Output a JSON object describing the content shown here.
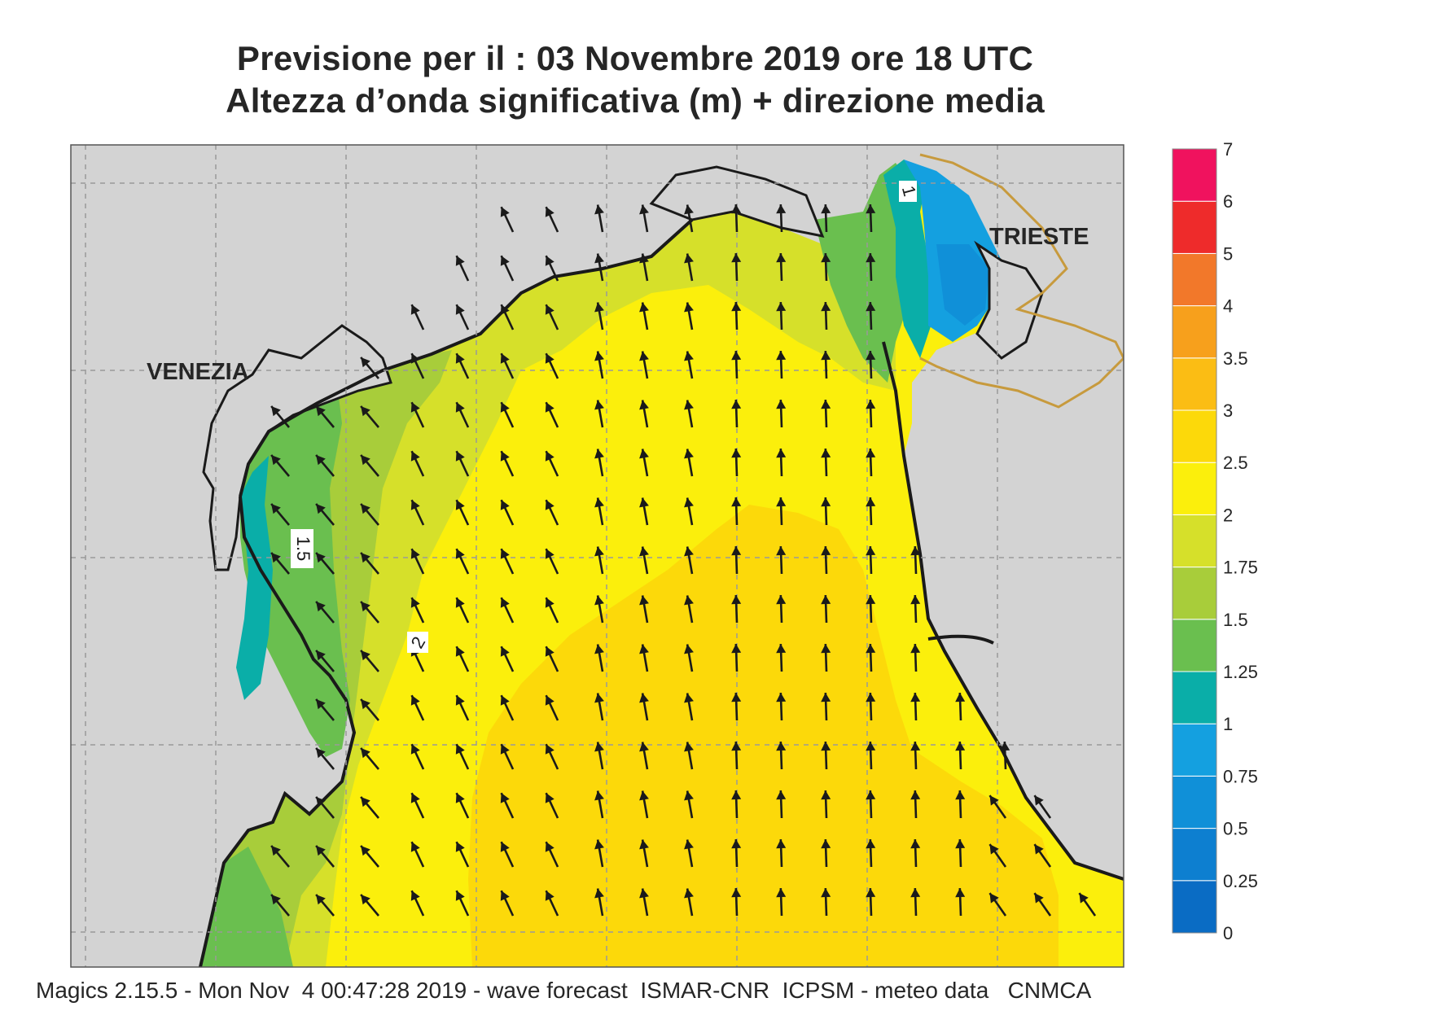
{
  "title_line1": "Previsione per il  :  03 Novembre  2019   ore 18 UTC",
  "title_line2": "Altezza d’onda significativa (m) + direzione media",
  "places": {
    "venezia": "VENEZIA",
    "trieste": "TRIESTE"
  },
  "contour_labels": [
    "1",
    "1.5",
    "2"
  ],
  "colorbar": {
    "ticks": [
      "0",
      "0.25",
      "0.5",
      "0.75",
      "1",
      "1.25",
      "1.5",
      "1.75",
      "2",
      "2.5",
      "3",
      "3.5",
      "4",
      "5",
      "6",
      "7"
    ],
    "colors": [
      "#0a6cc4",
      "#0d7fd0",
      "#1090d8",
      "#14a0e0",
      "#0aaea8",
      "#6abf4f",
      "#a8cd3a",
      "#d6e02a",
      "#fbef0c",
      "#fcd90a",
      "#fbbd14",
      "#f7a01c",
      "#f2782a",
      "#ee2b2b",
      "#f0125e"
    ]
  },
  "map_colors": {
    "land": "#d3d3d3",
    "coast": "#1a1a1a",
    "border": "#c79a3d",
    "grid": "#999999"
  },
  "footer": "Magics 2.15.5 - Mon Nov  4 00:47:28 2019 - wave forecast  ISMAR-CNR  ICPSM - meteo data   CNMCA"
}
